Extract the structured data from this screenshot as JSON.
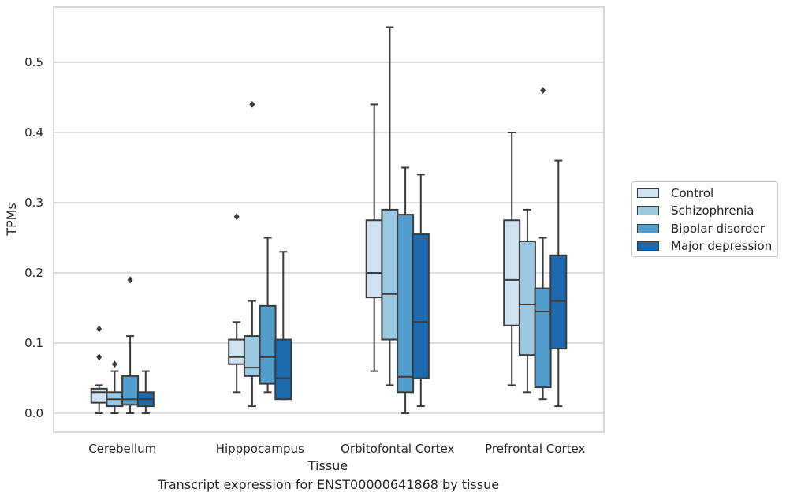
{
  "chart_data": {
    "type": "box",
    "title": "",
    "xlabel": "Tissue",
    "ylabel": "TPMs",
    "categories": [
      "Cerebellum",
      "Hipppocampus",
      "Orbitofontal Cortex",
      "Prefrontal Cortex"
    ],
    "ylim": [
      -0.027,
      0.58
    ],
    "yticks": [
      "0.0",
      "0.1",
      "0.2",
      "0.3",
      "0.4",
      "0.5"
    ],
    "grid": "horizontal",
    "legend_position": "right",
    "series": [
      {
        "name": "Control",
        "color": "#d0e2f2",
        "boxes": [
          {
            "whisker_low": 0.0,
            "q1": 0.015,
            "median": 0.03,
            "q3": 0.035,
            "whisker_high": 0.04,
            "outliers": [
              0.12,
              0.08
            ]
          },
          {
            "whisker_low": 0.03,
            "q1": 0.07,
            "median": 0.08,
            "q3": 0.105,
            "whisker_high": 0.13,
            "outliers": [
              0.28
            ]
          },
          {
            "whisker_low": 0.06,
            "q1": 0.165,
            "median": 0.2,
            "q3": 0.275,
            "whisker_high": 0.44,
            "outliers": []
          },
          {
            "whisker_low": 0.04,
            "q1": 0.125,
            "median": 0.19,
            "q3": 0.275,
            "whisker_high": 0.4,
            "outliers": []
          }
        ]
      },
      {
        "name": "Schizophrenia",
        "color": "#9ac8e0",
        "boxes": [
          {
            "whisker_low": 0.0,
            "q1": 0.01,
            "median": 0.02,
            "q3": 0.03,
            "whisker_high": 0.06,
            "outliers": [
              0.07
            ]
          },
          {
            "whisker_low": 0.01,
            "q1": 0.053,
            "median": 0.065,
            "q3": 0.11,
            "whisker_high": 0.16,
            "outliers": [
              0.44
            ]
          },
          {
            "whisker_low": 0.04,
            "q1": 0.105,
            "median": 0.17,
            "q3": 0.29,
            "whisker_high": 0.55,
            "outliers": []
          },
          {
            "whisker_low": 0.03,
            "q1": 0.083,
            "median": 0.155,
            "q3": 0.245,
            "whisker_high": 0.29,
            "outliers": []
          }
        ]
      },
      {
        "name": "Bipolar disorder",
        "color": "#529dcc",
        "boxes": [
          {
            "whisker_low": 0.0,
            "q1": 0.012,
            "median": 0.02,
            "q3": 0.053,
            "whisker_high": 0.11,
            "outliers": [
              0.19
            ]
          },
          {
            "whisker_low": 0.03,
            "q1": 0.042,
            "median": 0.08,
            "q3": 0.153,
            "whisker_high": 0.25,
            "outliers": []
          },
          {
            "whisker_low": 0.0,
            "q1": 0.03,
            "median": 0.052,
            "q3": 0.283,
            "whisker_high": 0.35,
            "outliers": []
          },
          {
            "whisker_low": 0.02,
            "q1": 0.037,
            "median": 0.145,
            "q3": 0.178,
            "whisker_high": 0.25,
            "outliers": [
              0.46
            ]
          }
        ]
      },
      {
        "name": "Major depression",
        "color": "#1c6aaf",
        "boxes": [
          {
            "whisker_low": 0.0,
            "q1": 0.01,
            "median": 0.02,
            "q3": 0.03,
            "whisker_high": 0.06,
            "outliers": []
          },
          {
            "whisker_low": 0.02,
            "q1": 0.02,
            "median": 0.05,
            "q3": 0.105,
            "whisker_high": 0.23,
            "outliers": []
          },
          {
            "whisker_low": 0.01,
            "q1": 0.05,
            "median": 0.13,
            "q3": 0.255,
            "whisker_high": 0.34,
            "outliers": []
          },
          {
            "whisker_low": 0.01,
            "q1": 0.092,
            "median": 0.16,
            "q3": 0.225,
            "whisker_high": 0.36,
            "outliers": []
          }
        ]
      }
    ]
  },
  "caption": "Transcript expression for ENST00000641868 by tissue"
}
